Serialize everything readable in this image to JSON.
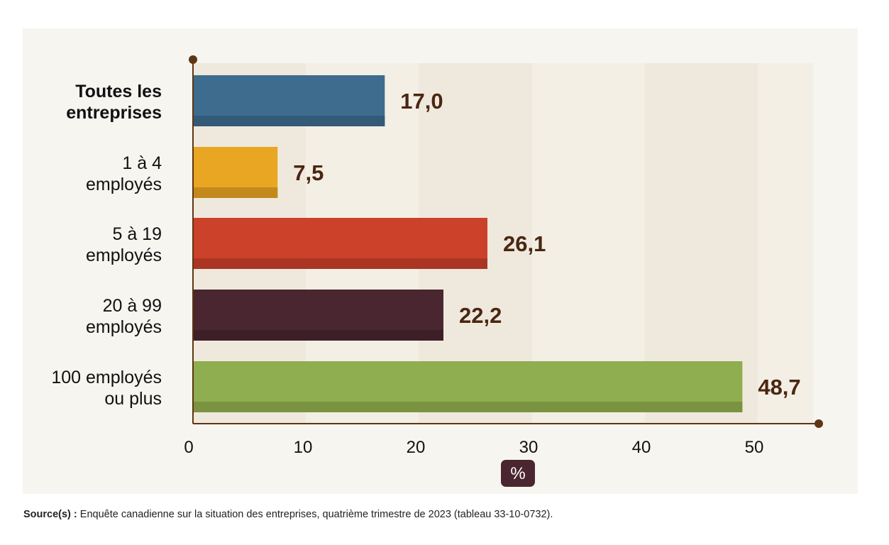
{
  "chart_data": {
    "type": "bar",
    "orientation": "horizontal",
    "title": "",
    "categories": [
      [
        "Toutes les",
        "entreprises"
      ],
      [
        "1 à 4",
        "employés"
      ],
      [
        "5 à 19",
        "employés"
      ],
      [
        "20 à 99",
        "employés"
      ],
      [
        "100 employés",
        "ou plus"
      ]
    ],
    "category_bold": [
      true,
      false,
      false,
      false,
      false
    ],
    "values": [
      17.0,
      7.5,
      26.1,
      22.2,
      48.7
    ],
    "value_labels": [
      "17,0",
      "7,5",
      "26,1",
      "22,2",
      "48,7"
    ],
    "colors": [
      "#3e6c8e",
      "#e8a622",
      "#cc412a",
      "#4a2630",
      "#8fae4f"
    ],
    "shade_colors": [
      "#335a77",
      "#c3891c",
      "#ab3523",
      "#3d1f28",
      "#7a9341"
    ],
    "xlabel": "%",
    "ylabel": "",
    "xlim": [
      0,
      56
    ],
    "xticks": [
      0,
      10,
      20,
      30,
      40,
      50
    ],
    "xtick_labels": [
      "0",
      "10",
      "20",
      "30",
      "40",
      "50"
    ],
    "grid": "alternating vertical bands",
    "band_colors": [
      "#efe9dd",
      "#f3efe5"
    ],
    "axis_color": "#5e3613",
    "value_label_color": "#4a2612",
    "unit_badge_color": "#4a2630",
    "legend": "none"
  },
  "source": {
    "label": "Source(s) :",
    "text": " Enquête canadienne sur la situation des entreprises, quatrième trimestre de 2023 (tableau 33-10-0732)."
  }
}
